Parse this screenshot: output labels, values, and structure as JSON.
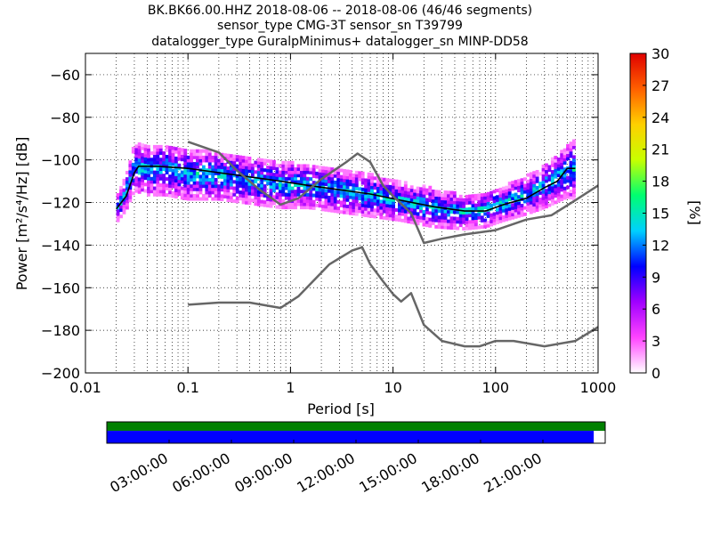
{
  "title_lines": [
    "BK.BK66.00.HHZ   2018-08-06 -- 2018-08-06  (46/46 segments)",
    "sensor_type CMG-3T sensor_sn T39799",
    "datalogger_type GuralpMinimus+ datalogger_sn MINP-DD58"
  ],
  "chart_data": {
    "type": "heatmap",
    "xlabel": "Period [s]",
    "ylabel": "Power [m²/s⁴/Hz] [dB]",
    "xscale": "log",
    "xlim": [
      0.01,
      1000
    ],
    "ylim": [
      -200,
      -50
    ],
    "xticks": [
      0.01,
      0.1,
      1,
      10,
      100,
      1000
    ],
    "xtick_labels": [
      "0.01",
      "0.1",
      "1",
      "10",
      "100",
      "1000"
    ],
    "yticks": [
      -200,
      -180,
      -160,
      -140,
      -120,
      -100,
      -80,
      -60
    ],
    "ytick_labels": [
      "−200",
      "−180",
      "−160",
      "−140",
      "−120",
      "−100",
      "−80",
      "−60"
    ],
    "grid": true,
    "colorbar": {
      "label": "[%]",
      "range": [
        0,
        30
      ],
      "ticks": [
        0,
        3,
        6,
        9,
        12,
        15,
        18,
        21,
        24,
        27,
        30
      ],
      "tick_labels": [
        "0",
        "3",
        "6",
        "9",
        "12",
        "15",
        "18",
        "21",
        "24",
        "27",
        "30"
      ],
      "colormap": [
        "#ffffff",
        "#ff44ff",
        "#a000ff",
        "#0000ff",
        "#00d0ff",
        "#00ff70",
        "#c8ff00",
        "#ffd000",
        "#ff6000",
        "#e00000"
      ]
    },
    "density_band": {
      "periods": [
        0.02,
        0.025,
        0.03,
        0.04,
        0.06,
        0.1,
        0.2,
        0.4,
        0.8,
        1.5,
        3,
        6,
        12,
        25,
        50,
        80,
        120,
        200,
        300,
        500,
        600
      ],
      "center": [
        -124,
        -116,
        -104,
        -105,
        -105,
        -107,
        -108,
        -110,
        -112,
        -113,
        -115,
        -117,
        -120,
        -123,
        -125,
        -124,
        -121,
        -117,
        -113,
        -106,
        -105
      ],
      "spread": [
        6,
        8,
        11,
        12,
        12,
        12,
        11,
        11,
        11,
        10,
        10,
        10,
        9,
        9,
        8,
        8,
        8,
        9,
        10,
        12,
        14
      ]
    },
    "series": [
      {
        "color": "#000000",
        "x": [
          0.02,
          0.025,
          0.03,
          0.033,
          0.05,
          0.1,
          0.2,
          0.4,
          0.8,
          1.5,
          3,
          6,
          12,
          25,
          50,
          80,
          120,
          200,
          300,
          400,
          500,
          600
        ],
        "y": [
          -123,
          -117,
          -106,
          -103,
          -103,
          -104,
          -106,
          -108,
          -110,
          -112,
          -114,
          -116,
          -119,
          -122,
          -124,
          -124,
          -121,
          -118,
          -113,
          -110,
          -104,
          -104
        ]
      },
      {
        "color": "#666666",
        "x": [
          0.1,
          0.2,
          0.3,
          0.5,
          0.8,
          1.2,
          2,
          3.5,
          4.5,
          6,
          8,
          10,
          15,
          20,
          30,
          50,
          100,
          200,
          350,
          600,
          1000
        ],
        "y": [
          -91.5,
          -96.5,
          -105,
          -114,
          -121,
          -118,
          -109,
          -101,
          -97,
          -101,
          -112,
          -117,
          -125,
          -139,
          -137,
          -135,
          -133,
          -128,
          -126,
          -119,
          -112
        ]
      },
      {
        "color": "#666666",
        "x": [
          0.1,
          0.2,
          0.4,
          0.8,
          1.2,
          2.4,
          4,
          5,
          6,
          8,
          10,
          12,
          15,
          20,
          30,
          50,
          70,
          100,
          150,
          300,
          600,
          1000
        ],
        "y": [
          -168,
          -167,
          -167,
          -169.5,
          -164,
          -149,
          -142.5,
          -141,
          -149,
          -157,
          -163,
          -166.5,
          -162.5,
          -177.5,
          -185,
          -187.5,
          -187.5,
          -185,
          -185,
          -187.5,
          -185,
          -178.5
        ]
      }
    ]
  },
  "timeline": {
    "tick_labels": [
      "03:00:00",
      "06:00:00",
      "09:00:00",
      "12:00:00",
      "15:00:00",
      "18:00:00",
      "21:00:00"
    ],
    "tick_hours": [
      3,
      6,
      9,
      12,
      15,
      18,
      21
    ],
    "span_hours": 24,
    "top_bar_color": "#008000",
    "bottom_bar_color": "#0000ff",
    "top_bar_coverage": 1.0,
    "bottom_bar_coverage": 0.977
  }
}
